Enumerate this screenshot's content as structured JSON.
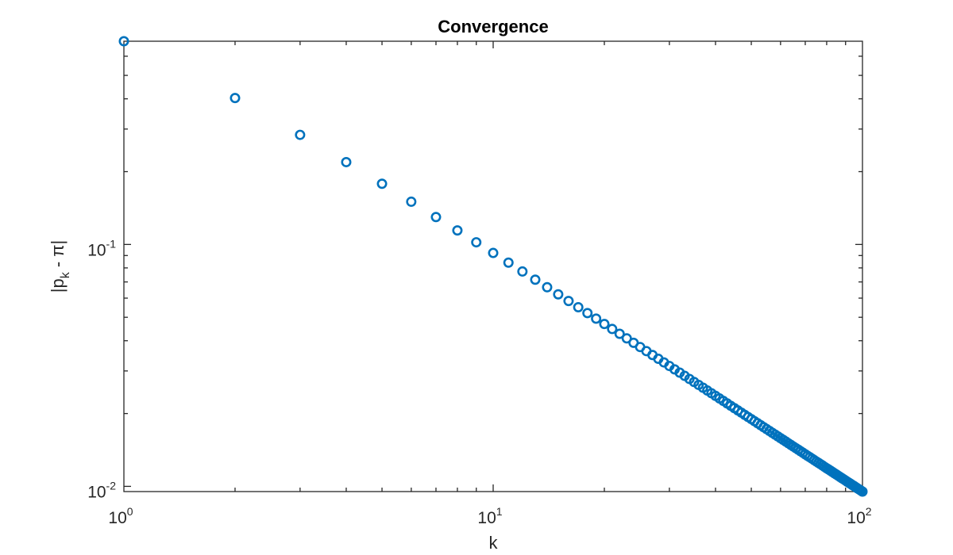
{
  "chart_data": {
    "type": "scatter",
    "title": "Convergence",
    "xlabel": "k",
    "ylabel": "|p_k - π|",
    "xscale": "log",
    "yscale": "log",
    "xlim": [
      1,
      100
    ],
    "ylim": [
      0.009516,
      0.6921
    ],
    "grid": false,
    "legend": null,
    "x_ticks": [
      {
        "base": "10",
        "exp": "0",
        "value": 1
      },
      {
        "base": "10",
        "exp": "1",
        "value": 10
      },
      {
        "base": "10",
        "exp": "2",
        "value": 100
      }
    ],
    "y_ticks": [
      {
        "base": "10",
        "exp": "-1",
        "value": 0.1
      },
      {
        "base": "10",
        "exp": "-2",
        "value": 0.01
      }
    ],
    "marker": "circle-open",
    "color": "#0072BD",
    "series": [
      {
        "name": "|p_k - pi|",
        "x": [
          1,
          2,
          3,
          4,
          5,
          6,
          7,
          8,
          9,
          10,
          11,
          12,
          13,
          14,
          15,
          16,
          17,
          18,
          19,
          20,
          21,
          22,
          23,
          24,
          25,
          26,
          27,
          28,
          29,
          30,
          31,
          32,
          33,
          34,
          35,
          36,
          37,
          38,
          39,
          40,
          41,
          42,
          43,
          44,
          45,
          46,
          47,
          48,
          49,
          50,
          51,
          52,
          53,
          54,
          55,
          56,
          57,
          58,
          59,
          60,
          61,
          62,
          63,
          64,
          65,
          66,
          67,
          68,
          69,
          70,
          71,
          72,
          73,
          74,
          75,
          76,
          77,
          78,
          79,
          80,
          81,
          82,
          83,
          84,
          85,
          86,
          87,
          88,
          89,
          90,
          91,
          92,
          93,
          94,
          95,
          96,
          97,
          98,
          99,
          100
        ],
        "values": [
          0.6921,
          0.403,
          0.2839,
          0.219,
          0.1782,
          0.1502,
          0.1298,
          0.1143,
          0.1021,
          0.09223,
          0.08411,
          0.07731,
          0.07152,
          0.06654,
          0.0622,
          0.0584,
          0.05503,
          0.05204,
          0.04935,
          0.04692,
          0.04473,
          0.04273,
          0.0409,
          0.03922,
          0.03767,
          0.03624,
          0.03492,
          0.03368,
          0.03254,
          0.03146,
          0.03046,
          0.02952,
          0.02863,
          0.0278,
          0.02701,
          0.02627,
          0.02557,
          0.0249,
          0.02427,
          0.02367,
          0.02309,
          0.02255,
          0.02203,
          0.02153,
          0.02106,
          0.0206,
          0.02017,
          0.01975,
          0.01935,
          0.01897,
          0.0186,
          0.01824,
          0.0179,
          0.01757,
          0.01725,
          0.01695,
          0.01665,
          0.01637,
          0.01609,
          0.01582,
          0.01557,
          0.01532,
          0.01507,
          0.01484,
          0.01461,
          0.01439,
          0.01418,
          0.01397,
          0.01377,
          0.01357,
          0.01338,
          0.0132,
          0.01302,
          0.01284,
          0.01267,
          0.01251,
          0.01235,
          0.01219,
          0.01203,
          0.01188,
          0.01174,
          0.0116,
          0.01146,
          0.01132,
          0.01119,
          0.01106,
          0.01093,
          0.01081,
          0.01069,
          0.01057,
          0.01045,
          0.01034,
          0.01023,
          0.01012,
          0.01002,
          0.009911,
          0.00981,
          0.009709,
          0.009612,
          0.009516
        ]
      }
    ]
  }
}
